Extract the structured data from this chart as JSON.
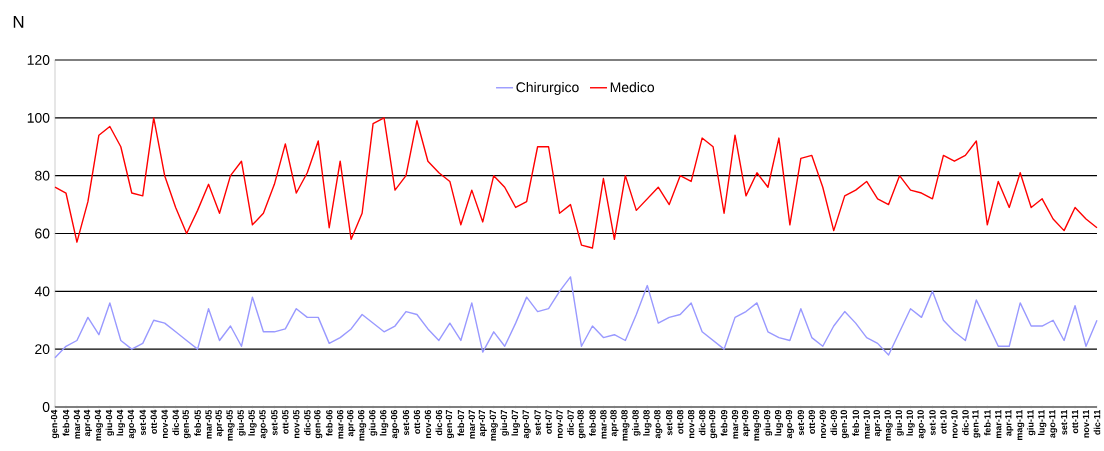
{
  "chart_data": {
    "type": "line",
    "ylabel": "N",
    "categories": [
      "gen-04",
      "feb-04",
      "mar-04",
      "apr-04",
      "mag-04",
      "giu-04",
      "lug-04",
      "ago-04",
      "set-04",
      "ott-04",
      "nov-04",
      "dic-04",
      "gen-05",
      "feb-05",
      "mar-05",
      "apr-05",
      "mag-05",
      "giu-05",
      "lug-05",
      "ago-05",
      "set-05",
      "ott-05",
      "nov-05",
      "dic-05",
      "gen-06",
      "feb-06",
      "mar-06",
      "apr-06",
      "mag-06",
      "giu-06",
      "lug-06",
      "ago-06",
      "set-06",
      "ott-06",
      "nov-06",
      "dic-06",
      "gen-07",
      "feb-07",
      "mar-07",
      "apr-07",
      "mag-07",
      "giu-07",
      "lug-07",
      "ago-07",
      "set-07",
      "ott-07",
      "nov-07",
      "dic-07",
      "gen-08",
      "feb-08",
      "mar-08",
      "apr-08",
      "mag-08",
      "giu-08",
      "lug-08",
      "ago-08",
      "set-08",
      "ott-08",
      "nov-08",
      "dic-08",
      "gen-09",
      "feb-09",
      "mar-09",
      "apr-09",
      "mag-09",
      "giu-09",
      "lug-09",
      "ago-09",
      "set-09",
      "ott-09",
      "nov-09",
      "dic-09",
      "gen-10",
      "feb-10",
      "mar-10",
      "apr-10",
      "mag-10",
      "giu-10",
      "lug-10",
      "ago-10",
      "set-10",
      "ott-10",
      "nov-10",
      "dic-10",
      "gen-11",
      "feb-11",
      "mar-11",
      "apr-11",
      "mag-11",
      "giu-11",
      "lug-11",
      "ago-11",
      "set-11",
      "ott-11",
      "nov-11",
      "dic-11"
    ],
    "series": [
      {
        "name": "Chirurgico",
        "color": "#9999ff",
        "values": [
          17,
          21,
          23,
          31,
          25,
          36,
          23,
          20,
          22,
          30,
          29,
          26,
          23,
          20,
          34,
          23,
          28,
          21,
          38,
          26,
          26,
          27,
          34,
          31,
          31,
          22,
          24,
          27,
          32,
          29,
          26,
          28,
          33,
          32,
          27,
          23,
          29,
          23,
          36,
          19,
          26,
          21,
          29,
          38,
          33,
          34,
          40,
          45,
          21,
          28,
          24,
          25,
          23,
          32,
          42,
          29,
          31,
          32,
          36,
          26,
          23,
          20,
          31,
          33,
          36,
          26,
          24,
          23,
          34,
          24,
          21,
          28,
          33,
          29,
          24,
          22,
          18,
          26,
          34,
          31,
          40,
          30,
          26,
          23,
          37,
          29,
          21,
          21,
          36,
          28,
          28,
          30,
          23,
          35,
          21,
          30
        ]
      },
      {
        "name": "Medico",
        "color": "#ff0000",
        "values": [
          76,
          74,
          57,
          71,
          94,
          97,
          90,
          74,
          73,
          100,
          80,
          69,
          60,
          68,
          77,
          67,
          80,
          85,
          63,
          67,
          77,
          91,
          74,
          81,
          92,
          62,
          85,
          58,
          67,
          98,
          100,
          75,
          80,
          99,
          85,
          81,
          78,
          63,
          75,
          64,
          80,
          76,
          69,
          71,
          90,
          90,
          67,
          70,
          56,
          55,
          79,
          58,
          80,
          68,
          72,
          76,
          70,
          80,
          78,
          93,
          90,
          67,
          94,
          73,
          81,
          76,
          93,
          63,
          86,
          87,
          76,
          61,
          73,
          75,
          78,
          72,
          70,
          80,
          75,
          74,
          72,
          87,
          85,
          87,
          92,
          63,
          78,
          69,
          81,
          69,
          72,
          65,
          61,
          69,
          65,
          62
        ]
      }
    ],
    "ylim": [
      0,
      120
    ],
    "yticks": [
      0,
      20,
      40,
      60,
      80,
      100,
      120
    ],
    "grid": "y",
    "legend": "top",
    "marker": "none",
    "line_style": "solid"
  }
}
